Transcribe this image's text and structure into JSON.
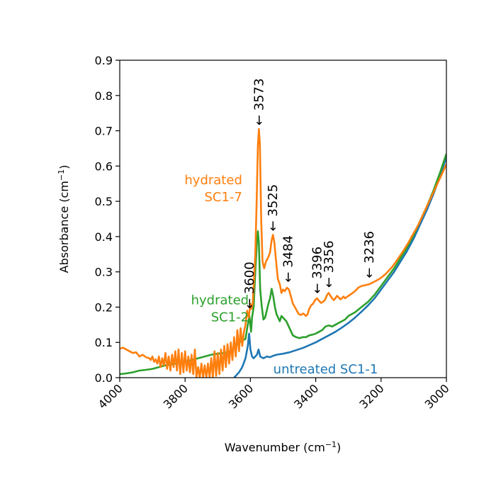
{
  "chart_data": {
    "type": "line",
    "title": "",
    "xlabel": "Wavenumber (cm",
    "xlabel_sup": "−1",
    "xlabel_end": ")",
    "ylabel": "Absorbance (cm",
    "ylabel_sup": "−1",
    "ylabel_end": ")",
    "xlim": [
      4000,
      3000
    ],
    "ylim": [
      0.0,
      0.9
    ],
    "x_reversed": true,
    "grid": false,
    "x_ticks": [
      4000,
      3800,
      3600,
      3400,
      3200,
      3000
    ],
    "x_tick_labels": [
      "4000",
      "3800",
      "3600",
      "3400",
      "3200",
      "3000"
    ],
    "y_ticks": [
      0.0,
      0.1,
      0.2,
      0.3,
      0.4,
      0.5,
      0.6,
      0.7,
      0.8,
      0.9
    ],
    "y_tick_labels": [
      "0.0",
      "0.1",
      "0.2",
      "0.3",
      "0.4",
      "0.5",
      "0.6",
      "0.7",
      "0.8",
      "0.9"
    ],
    "series": [
      {
        "name": "untreated SC1-1",
        "label_lines": [
          "untreated SC1-1"
        ],
        "color": "#1f77b4",
        "points": [
          [
            3650,
            0.0
          ],
          [
            3635,
            0.015
          ],
          [
            3625,
            0.03
          ],
          [
            3615,
            0.055
          ],
          [
            3608,
            0.09
          ],
          [
            3604,
            0.125
          ],
          [
            3600,
            0.08
          ],
          [
            3595,
            0.06
          ],
          [
            3590,
            0.055
          ],
          [
            3585,
            0.06
          ],
          [
            3580,
            0.065
          ],
          [
            3575,
            0.08
          ],
          [
            3570,
            0.06
          ],
          [
            3560,
            0.055
          ],
          [
            3550,
            0.06
          ],
          [
            3540,
            0.058
          ],
          [
            3530,
            0.062
          ],
          [
            3520,
            0.065
          ],
          [
            3500,
            0.068
          ],
          [
            3480,
            0.072
          ],
          [
            3460,
            0.078
          ],
          [
            3440,
            0.084
          ],
          [
            3420,
            0.092
          ],
          [
            3400,
            0.1
          ],
          [
            3380,
            0.11
          ],
          [
            3360,
            0.12
          ],
          [
            3340,
            0.13
          ],
          [
            3320,
            0.142
          ],
          [
            3300,
            0.155
          ],
          [
            3280,
            0.17
          ],
          [
            3260,
            0.187
          ],
          [
            3240,
            0.205
          ],
          [
            3220,
            0.225
          ],
          [
            3200,
            0.25
          ],
          [
            3180,
            0.275
          ],
          [
            3160,
            0.3
          ],
          [
            3140,
            0.33
          ],
          [
            3120,
            0.36
          ],
          [
            3100,
            0.395
          ],
          [
            3080,
            0.435
          ],
          [
            3060,
            0.475
          ],
          [
            3040,
            0.52
          ],
          [
            3020,
            0.57
          ],
          [
            3000,
            0.625
          ]
        ]
      },
      {
        "name": "hydrated SC1-2",
        "label_lines": [
          "hydrated",
          "SC1-2"
        ],
        "color": "#2ca02c",
        "points": [
          [
            4000,
            0.01
          ],
          [
            3980,
            0.012
          ],
          [
            3960,
            0.015
          ],
          [
            3940,
            0.02
          ],
          [
            3920,
            0.022
          ],
          [
            3900,
            0.025
          ],
          [
            3880,
            0.03
          ],
          [
            3860,
            0.035
          ],
          [
            3840,
            0.038
          ],
          [
            3820,
            0.042
          ],
          [
            3800,
            0.045
          ],
          [
            3780,
            0.05
          ],
          [
            3760,
            0.055
          ],
          [
            3740,
            0.06
          ],
          [
            3720,
            0.065
          ],
          [
            3700,
            0.068
          ],
          [
            3680,
            0.07
          ],
          [
            3660,
            0.075
          ],
          [
            3645,
            0.09
          ],
          [
            3635,
            0.1
          ],
          [
            3625,
            0.105
          ],
          [
            3615,
            0.11
          ],
          [
            3610,
            0.14
          ],
          [
            3603,
            0.175
          ],
          [
            3598,
            0.13
          ],
          [
            3595,
            0.17
          ],
          [
            3590,
            0.2
          ],
          [
            3585,
            0.3
          ],
          [
            3580,
            0.385
          ],
          [
            3577,
            0.415
          ],
          [
            3574,
            0.38
          ],
          [
            3570,
            0.25
          ],
          [
            3565,
            0.2
          ],
          [
            3560,
            0.165
          ],
          [
            3555,
            0.17
          ],
          [
            3550,
            0.19
          ],
          [
            3545,
            0.21
          ],
          [
            3540,
            0.225
          ],
          [
            3535,
            0.252
          ],
          [
            3530,
            0.23
          ],
          [
            3525,
            0.2
          ],
          [
            3520,
            0.18
          ],
          [
            3515,
            0.17
          ],
          [
            3510,
            0.16
          ],
          [
            3505,
            0.175
          ],
          [
            3500,
            0.17
          ],
          [
            3495,
            0.165
          ],
          [
            3490,
            0.16
          ],
          [
            3485,
            0.15
          ],
          [
            3480,
            0.14
          ],
          [
            3475,
            0.13
          ],
          [
            3470,
            0.12
          ],
          [
            3460,
            0.115
          ],
          [
            3450,
            0.112
          ],
          [
            3440,
            0.115
          ],
          [
            3430,
            0.115
          ],
          [
            3420,
            0.12
          ],
          [
            3410,
            0.122
          ],
          [
            3400,
            0.125
          ],
          [
            3390,
            0.13
          ],
          [
            3380,
            0.135
          ],
          [
            3370,
            0.145
          ],
          [
            3360,
            0.148
          ],
          [
            3350,
            0.145
          ],
          [
            3340,
            0.15
          ],
          [
            3330,
            0.155
          ],
          [
            3320,
            0.16
          ],
          [
            3310,
            0.165
          ],
          [
            3300,
            0.175
          ],
          [
            3280,
            0.185
          ],
          [
            3260,
            0.2
          ],
          [
            3240,
            0.215
          ],
          [
            3220,
            0.235
          ],
          [
            3200,
            0.26
          ],
          [
            3180,
            0.285
          ],
          [
            3160,
            0.31
          ],
          [
            3140,
            0.34
          ],
          [
            3120,
            0.37
          ],
          [
            3100,
            0.405
          ],
          [
            3080,
            0.445
          ],
          [
            3060,
            0.485
          ],
          [
            3040,
            0.53
          ],
          [
            3020,
            0.58
          ],
          [
            3000,
            0.635
          ]
        ]
      },
      {
        "name": "hydrated SC1-7",
        "label_lines": [
          "hydrated",
          "SC1-7"
        ],
        "color": "#ff7f0e",
        "points": [
          [
            4000,
            0.082
          ],
          [
            3990,
            0.085
          ],
          [
            3980,
            0.08
          ],
          [
            3970,
            0.075
          ],
          [
            3960,
            0.07
          ],
          [
            3950,
            0.072
          ],
          [
            3940,
            0.06
          ],
          [
            3930,
            0.065
          ],
          [
            3920,
            0.058
          ],
          [
            3910,
            0.055
          ],
          [
            3905,
            0.05
          ],
          [
            3900,
            0.06
          ],
          [
            3895,
            0.045
          ],
          [
            3890,
            0.052
          ],
          [
            3885,
            0.04
          ],
          [
            3880,
            0.06
          ],
          [
            3875,
            0.03
          ],
          [
            3870,
            0.055
          ],
          [
            3865,
            0.035
          ],
          [
            3860,
            0.07
          ],
          [
            3855,
            0.025
          ],
          [
            3850,
            0.06
          ],
          [
            3845,
            0.02
          ],
          [
            3840,
            0.065
          ],
          [
            3835,
            0.03
          ],
          [
            3830,
            0.075
          ],
          [
            3825,
            0.02
          ],
          [
            3820,
            0.08
          ],
          [
            3815,
            0.01
          ],
          [
            3810,
            0.07
          ],
          [
            3805,
            0.015
          ],
          [
            3800,
            0.075
          ],
          [
            3795,
            0.02
          ],
          [
            3790,
            0.06
          ],
          [
            3785,
            0.015
          ],
          [
            3780,
            0.065
          ],
          [
            3775,
            0.01
          ],
          [
            3770,
            0.08
          ],
          [
            3765,
            0.0
          ],
          [
            3760,
            0.03
          ],
          [
            3755,
            0.0
          ],
          [
            3750,
            0.04
          ],
          [
            3745,
            0.0
          ],
          [
            3740,
            0.035
          ],
          [
            3735,
            0.0
          ],
          [
            3730,
            0.04
          ],
          [
            3725,
            0.0
          ],
          [
            3720,
            0.055
          ],
          [
            3715,
            0.0
          ],
          [
            3710,
            0.075
          ],
          [
            3705,
            0.005
          ],
          [
            3700,
            0.07
          ],
          [
            3695,
            0.01
          ],
          [
            3690,
            0.08
          ],
          [
            3685,
            0.02
          ],
          [
            3680,
            0.09
          ],
          [
            3675,
            0.03
          ],
          [
            3670,
            0.095
          ],
          [
            3665,
            0.04
          ],
          [
            3660,
            0.1
          ],
          [
            3655,
            0.05
          ],
          [
            3650,
            0.115
          ],
          [
            3645,
            0.06
          ],
          [
            3640,
            0.135
          ],
          [
            3635,
            0.075
          ],
          [
            3630,
            0.14
          ],
          [
            3625,
            0.09
          ],
          [
            3620,
            0.13
          ],
          [
            3615,
            0.15
          ],
          [
            3610,
            0.19
          ],
          [
            3605,
            0.17
          ],
          [
            3600,
            0.21
          ],
          [
            3597,
            0.195
          ],
          [
            3593,
            0.21
          ],
          [
            3589,
            0.28
          ],
          [
            3585,
            0.35
          ],
          [
            3581,
            0.5
          ],
          [
            3577,
            0.66
          ],
          [
            3574,
            0.705
          ],
          [
            3571,
            0.66
          ],
          [
            3567,
            0.45
          ],
          [
            3563,
            0.33
          ],
          [
            3558,
            0.31
          ],
          [
            3552,
            0.33
          ],
          [
            3546,
            0.34
          ],
          [
            3540,
            0.355
          ],
          [
            3535,
            0.39
          ],
          [
            3531,
            0.405
          ],
          [
            3527,
            0.385
          ],
          [
            3522,
            0.335
          ],
          [
            3516,
            0.28
          ],
          [
            3510,
            0.265
          ],
          [
            3505,
            0.24
          ],
          [
            3500,
            0.25
          ],
          [
            3495,
            0.245
          ],
          [
            3488,
            0.255
          ],
          [
            3482,
            0.25
          ],
          [
            3476,
            0.23
          ],
          [
            3470,
            0.21
          ],
          [
            3464,
            0.2
          ],
          [
            3458,
            0.19
          ],
          [
            3452,
            0.18
          ],
          [
            3445,
            0.178
          ],
          [
            3438,
            0.182
          ],
          [
            3430,
            0.175
          ],
          [
            3425,
            0.18
          ],
          [
            3420,
            0.195
          ],
          [
            3414,
            0.205
          ],
          [
            3408,
            0.21
          ],
          [
            3402,
            0.22
          ],
          [
            3396,
            0.225
          ],
          [
            3390,
            0.218
          ],
          [
            3384,
            0.212
          ],
          [
            3378,
            0.215
          ],
          [
            3372,
            0.22
          ],
          [
            3365,
            0.235
          ],
          [
            3360,
            0.24
          ],
          [
            3355,
            0.232
          ],
          [
            3350,
            0.225
          ],
          [
            3345,
            0.22
          ],
          [
            3340,
            0.225
          ],
          [
            3335,
            0.232
          ],
          [
            3330,
            0.228
          ],
          [
            3325,
            0.222
          ],
          [
            3320,
            0.225
          ],
          [
            3315,
            0.23
          ],
          [
            3310,
            0.225
          ],
          [
            3300,
            0.232
          ],
          [
            3290,
            0.238
          ],
          [
            3280,
            0.245
          ],
          [
            3270,
            0.255
          ],
          [
            3260,
            0.26
          ],
          [
            3250,
            0.262
          ],
          [
            3236,
            0.265
          ],
          [
            3225,
            0.27
          ],
          [
            3215,
            0.275
          ],
          [
            3205,
            0.28
          ],
          [
            3195,
            0.287
          ],
          [
            3185,
            0.295
          ],
          [
            3175,
            0.305
          ],
          [
            3165,
            0.315
          ],
          [
            3155,
            0.328
          ],
          [
            3145,
            0.342
          ],
          [
            3135,
            0.355
          ],
          [
            3125,
            0.37
          ],
          [
            3115,
            0.385
          ],
          [
            3105,
            0.402
          ],
          [
            3095,
            0.418
          ],
          [
            3085,
            0.435
          ],
          [
            3075,
            0.455
          ],
          [
            3065,
            0.475
          ],
          [
            3055,
            0.495
          ],
          [
            3045,
            0.515
          ],
          [
            3035,
            0.535
          ],
          [
            3025,
            0.555
          ],
          [
            3015,
            0.575
          ],
          [
            3005,
            0.595
          ],
          [
            3000,
            0.605
          ]
        ]
      }
    ],
    "peak_annotations": [
      {
        "label": "3600",
        "x": 3603,
        "y": 0.195
      },
      {
        "label": "3573",
        "x": 3574,
        "y": 0.715
      },
      {
        "label": "3525",
        "x": 3531,
        "y": 0.415
      },
      {
        "label": "3484",
        "x": 3485,
        "y": 0.27
      },
      {
        "label": "3396",
        "x": 3396,
        "y": 0.238
      },
      {
        "label": "3356",
        "x": 3360,
        "y": 0.255
      },
      {
        "label": "3236",
        "x": 3236,
        "y": 0.282
      }
    ],
    "series_label_anchors": [
      {
        "series": "hydrated SC1-7",
        "x": 3625,
        "y": 0.5,
        "align": "end"
      },
      {
        "series": "hydrated SC1-2",
        "x": 3605,
        "y": 0.16,
        "align": "end"
      },
      {
        "series": "untreated SC1-1",
        "x": 3530,
        "y": 0.012,
        "align": "start"
      }
    ]
  }
}
